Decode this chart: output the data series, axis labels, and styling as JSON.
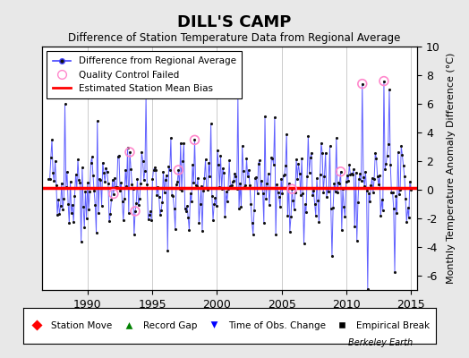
{
  "title": "DILL'S CAMP",
  "subtitle": "Difference of Station Temperature Data from Regional Average",
  "ylabel": "Monthly Temperature Anomaly Difference (°C)",
  "xlim": [
    1986.5,
    2015.5
  ],
  "ylim": [
    -7,
    10
  ],
  "yticks": [
    -6,
    -4,
    -2,
    0,
    2,
    4,
    6,
    8,
    10
  ],
  "xticks": [
    1990,
    1995,
    2000,
    2005,
    2010,
    2015
  ],
  "line_color": "#4444ff",
  "bias_color": "#ff0000",
  "dot_color": "#111111",
  "qc_color": "#ff88cc",
  "background_color": "#e8e8e8",
  "plot_bg_color": "#ffffff",
  "grid_color": "#cccccc",
  "seed": 42,
  "n_points": 336,
  "start_year": 1987.0,
  "qc_fail_indices": [
    60,
    75,
    80,
    120,
    135,
    225,
    270,
    290,
    310
  ],
  "bias_y": 0.15,
  "footer": "Berkeley Earth",
  "spike_locs": [
    15,
    30,
    45,
    90,
    110,
    150,
    175,
    200,
    210,
    240,
    260,
    290,
    295,
    310,
    315,
    320
  ],
  "spike_vals": [
    5,
    -3,
    7,
    6.5,
    -3.5,
    4.5,
    6.5,
    6,
    -3.5,
    4,
    5.5,
    6,
    -5,
    8.5,
    5.5,
    -4.5
  ]
}
